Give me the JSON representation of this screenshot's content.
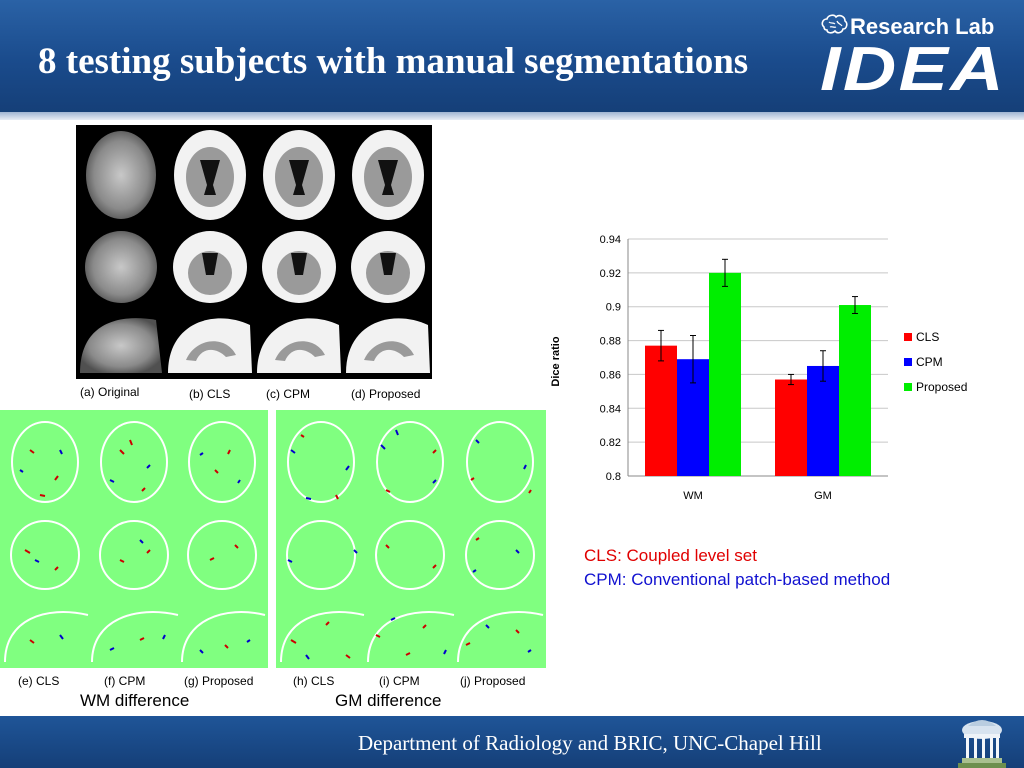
{
  "slide": {
    "title": "8 testing subjects with manual segmentations",
    "logo_top": "Research Lab",
    "logo_main": "IDEA",
    "footer": "Department of Radiology and BRIC, UNC-Chapel Hill"
  },
  "mri_labels": [
    "(a) Original",
    "(b) CLS",
    "(c) CPM",
    "(d) Proposed"
  ],
  "diff_labels": [
    "(e) CLS",
    "(f)  CPM",
    "(g) Proposed",
    "(h) CLS",
    "(i)  CPM",
    "(j) Proposed"
  ],
  "diff_titles": [
    "WM difference",
    "GM difference"
  ],
  "definitions": {
    "cls_abbr": "CLS:",
    "cls_text": " Coupled level set",
    "cpm_abbr": "CPM:",
    "cpm_text": " Conventional patch-based method",
    "cls_color": "#e00000",
    "cpm_color": "#1010d0"
  },
  "chart_data": {
    "type": "bar",
    "categories": [
      "WM",
      "GM"
    ],
    "series": [
      {
        "name": "CLS",
        "color": "#ff0000",
        "values": [
          0.877,
          0.857
        ],
        "errors": [
          0.009,
          0.003
        ]
      },
      {
        "name": "CPM",
        "color": "#0000ff",
        "values": [
          0.869,
          0.865
        ],
        "errors": [
          0.014,
          0.009
        ]
      },
      {
        "name": "Proposed",
        "color": "#00ee00",
        "values": [
          0.92,
          0.901
        ],
        "errors": [
          0.008,
          0.005
        ]
      }
    ],
    "ylabel": "Dice ratio",
    "ylim": [
      0.8,
      0.94
    ],
    "yticks": [
      "0.8",
      "0.82",
      "0.84",
      "0.86",
      "0.88",
      "0.9",
      "0.92",
      "0.94"
    ],
    "grid": true,
    "legend_position": "right"
  },
  "icons": {
    "brain": "brain-icon",
    "campus": "old-well-icon"
  },
  "colors": {
    "header_blue": "#1a4b8c",
    "diff_background": "#80ff80"
  }
}
